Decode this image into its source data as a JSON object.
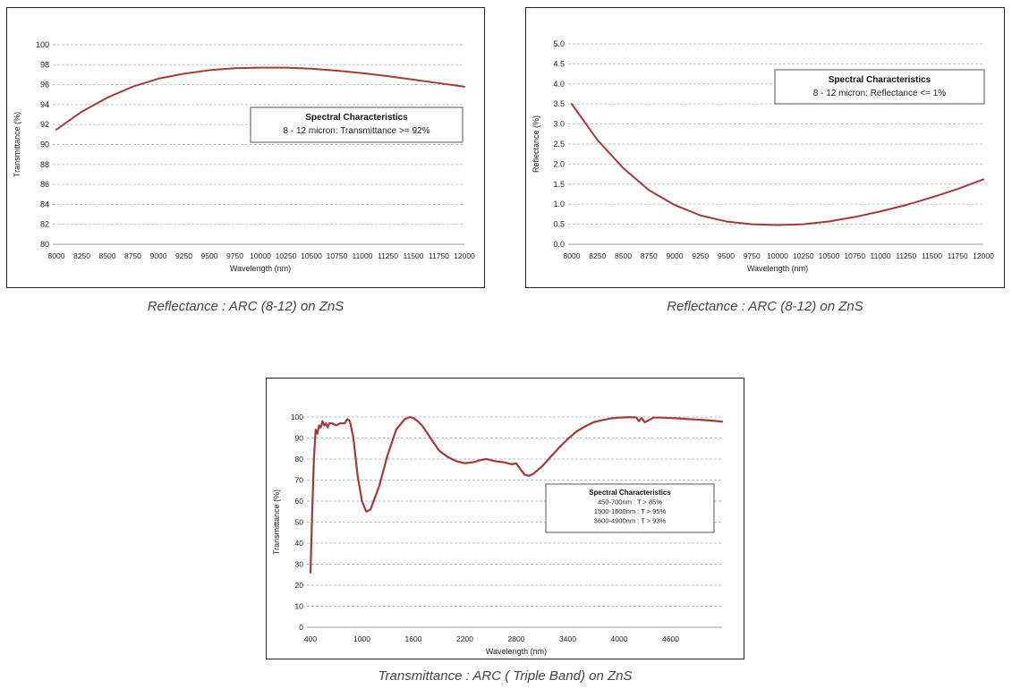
{
  "chart_data": [
    {
      "type": "line",
      "ylabel": "Transmittance (%)",
      "xlabel": "Wavelength (nm)",
      "xlim": [
        8000,
        12000
      ],
      "ylim": [
        80,
        100
      ],
      "xticks": [
        8000,
        8250,
        8500,
        8750,
        9000,
        9250,
        9500,
        9750,
        10000,
        10250,
        10500,
        10750,
        11000,
        11250,
        11500,
        11750,
        12000
      ],
      "yticks": [
        80,
        82,
        84,
        86,
        88,
        90,
        92,
        94,
        96,
        98,
        100
      ],
      "ytick_decimals": 0,
      "grid": true,
      "line_color": "#a33a3a",
      "annotation": {
        "title": "Spectral Characteristics",
        "lines": [
          "8 - 12 micron: Transmittance >= 92%"
        ],
        "placement": "center-right"
      },
      "series": [
        {
          "x": [
            8000,
            8250,
            8500,
            8750,
            9000,
            9250,
            9500,
            9750,
            10000,
            10250,
            10500,
            10750,
            11000,
            11250,
            11500,
            11750,
            12000
          ],
          "y": [
            91.5,
            93.3,
            94.7,
            95.8,
            96.6,
            97.1,
            97.45,
            97.65,
            97.7,
            97.7,
            97.6,
            97.4,
            97.15,
            96.85,
            96.5,
            96.15,
            95.8
          ]
        }
      ]
    },
    {
      "type": "line",
      "ylabel": "Reflectance (%)",
      "xlabel": "Wavelength (nm)",
      "xlim": [
        8000,
        12000
      ],
      "ylim": [
        0,
        5
      ],
      "xticks": [
        8000,
        8250,
        8500,
        8750,
        9000,
        9250,
        9500,
        9750,
        10000,
        10250,
        10500,
        10750,
        11000,
        11250,
        11500,
        11750,
        12000
      ],
      "yticks": [
        0,
        0.5,
        1.0,
        1.5,
        2.0,
        2.5,
        3.0,
        3.5,
        4.0,
        4.5,
        5.0
      ],
      "ytick_decimals": 1,
      "grid": true,
      "line_color": "#a33a3a",
      "annotation": {
        "title": "Spectral Characteristics",
        "lines": [
          "8 - 12 micron: Reflectance <= 1%"
        ],
        "placement": "top-right"
      },
      "series": [
        {
          "x": [
            8000,
            8250,
            8500,
            8750,
            9000,
            9250,
            9500,
            9750,
            10000,
            10250,
            10500,
            10750,
            11000,
            11250,
            11500,
            11750,
            12000
          ],
          "y": [
            3.5,
            2.6,
            1.9,
            1.35,
            0.98,
            0.72,
            0.57,
            0.5,
            0.48,
            0.5,
            0.57,
            0.68,
            0.82,
            0.98,
            1.17,
            1.38,
            1.62
          ]
        }
      ]
    },
    {
      "type": "line",
      "ylabel": "Transmittance (%)",
      "xlabel": "Wavelength (nm)",
      "xlim": [
        400,
        5200
      ],
      "ylim": [
        0,
        100
      ],
      "xticks": [
        400,
        1000,
        1600,
        2200,
        2800,
        3400,
        4000,
        4600
      ],
      "yticks": [
        0,
        10,
        20,
        30,
        40,
        50,
        60,
        70,
        80,
        90,
        100
      ],
      "ytick_decimals": 0,
      "grid": true,
      "line_color": "#a33a3a",
      "annotation": {
        "title": "Spectral Characteristics",
        "lines": [
          "450-700nm : T > 85%",
          "1500-1600nm : T > 95%",
          "3600-4900nm : T > 93%"
        ],
        "placement": "center-right"
      },
      "series": [
        {
          "x": [
            400,
            420,
            440,
            460,
            480,
            500,
            520,
            540,
            560,
            580,
            600,
            620,
            650,
            700,
            750,
            800,
            830,
            860,
            900,
            950,
            1000,
            1050,
            1100,
            1200,
            1300,
            1400,
            1500,
            1560,
            1600,
            1650,
            1700,
            1800,
            1900,
            2000,
            2100,
            2200,
            2300,
            2380,
            2450,
            2550,
            2650,
            2750,
            2800,
            2850,
            2900,
            2950,
            3000,
            3100,
            3200,
            3300,
            3400,
            3500,
            3600,
            3700,
            3800,
            3900,
            4000,
            4100,
            4200,
            4230,
            4260,
            4300,
            4400,
            4500,
            4600,
            4700,
            4800,
            4900,
            5000,
            5100,
            5200
          ],
          "y": [
            26,
            55,
            80,
            94,
            92,
            96,
            95,
            98,
            96,
            97,
            95,
            97,
            97,
            96,
            97,
            97,
            99,
            98,
            90,
            72,
            60,
            55,
            56,
            67,
            82,
            94,
            99,
            100,
            99.5,
            98,
            96,
            90,
            84,
            81,
            79,
            78,
            78.5,
            79.5,
            80,
            79,
            78.5,
            77.5,
            78,
            75,
            72.5,
            72,
            73,
            76.5,
            81,
            85.5,
            89.5,
            93,
            95.5,
            97.5,
            98.5,
            99.3,
            99.7,
            99.9,
            99.8,
            98,
            99.5,
            97.5,
            99.7,
            99.7,
            99.5,
            99.3,
            99,
            98.8,
            98.5,
            98.2,
            97.8
          ]
        }
      ]
    }
  ],
  "captions": [
    "Reflectance : ARC (8-12) on ZnS",
    "Reflectance : ARC (8-12) on ZnS",
    "Transmittance : ARC ( Triple Band) on ZnS"
  ]
}
